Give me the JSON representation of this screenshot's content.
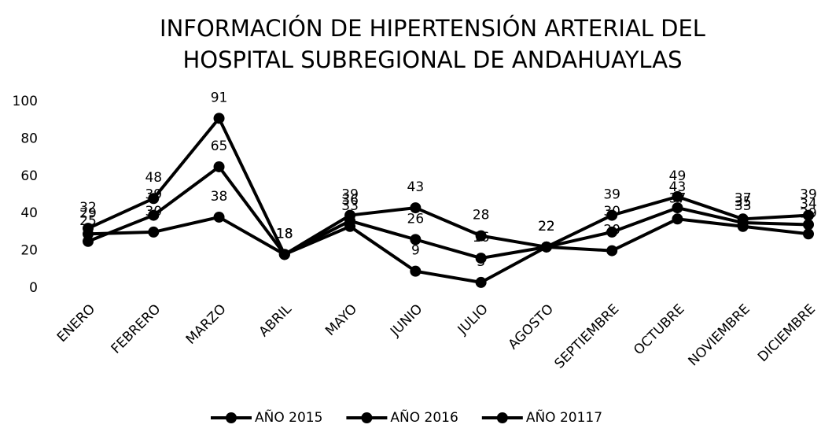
{
  "chart_data": {
    "type": "line",
    "title": [
      "INFORMACIÓN DE HIPERTENSIÓN ARTERIAL DEL",
      "HOSPITAL SUBREGIONAL DE ANDAHUAYLAS"
    ],
    "categories": [
      "ENERO",
      "FEBRERO",
      "MARZO",
      "ABRIL",
      "MAYO",
      "JUNIO",
      "JULIO",
      "AGOSTO",
      "SEPTIEMBRE",
      "OCTUBRE",
      "NOVIEMBRE",
      "DICIEMBRE"
    ],
    "series": [
      {
        "name": "AÑO 2015",
        "color": "#000000",
        "values": [
          29,
          30,
          38,
          18,
          36,
          26,
          16,
          22,
          20,
          37,
          33,
          29
        ]
      },
      {
        "name": "AÑO 2016",
        "color": "#000000",
        "values": [
          25,
          39,
          65,
          18,
          33,
          9,
          3,
          22,
          30,
          43,
          35,
          34
        ]
      },
      {
        "name": "AÑO 20117",
        "color": "#000000",
        "values": [
          32,
          48,
          91,
          18,
          39,
          43,
          28,
          22,
          39,
          49,
          37,
          39
        ]
      }
    ],
    "ylim": [
      0,
      100
    ],
    "yticks": [
      0,
      20,
      40,
      60,
      80,
      100
    ],
    "grid": false,
    "legend": "bottom"
  }
}
